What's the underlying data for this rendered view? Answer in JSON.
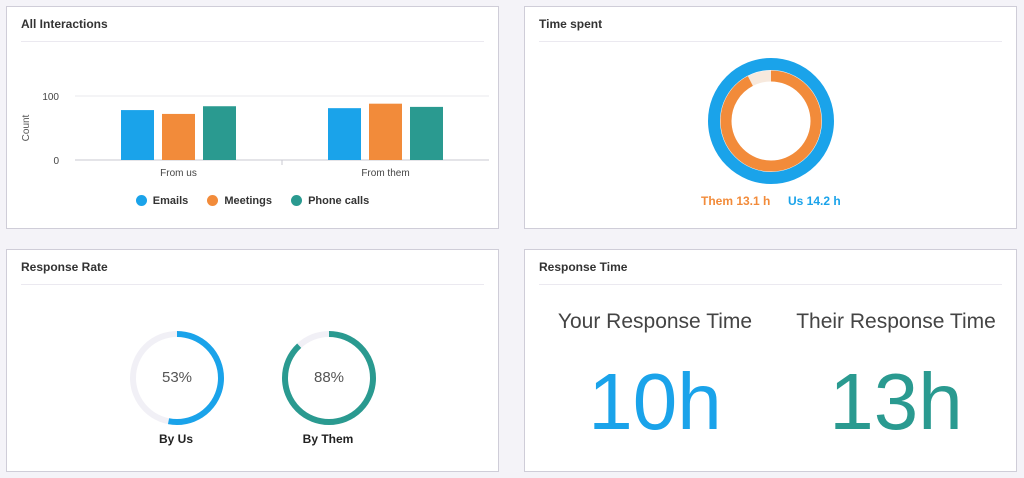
{
  "colors": {
    "emails": "#1aa3ea",
    "meetings": "#f28b3a",
    "phone_calls": "#2a9a90",
    "them": "#f28b3a",
    "us": "#1aa3ea",
    "by_us": "#1aa3ea",
    "by_them": "#2a9a90",
    "your_response": "#1aa3ea",
    "their_response": "#2a9a90"
  },
  "interactions": {
    "title": "All Interactions",
    "chart_data": {
      "type": "bar",
      "title": "",
      "ylabel": "Count",
      "xlabel": "",
      "ylim": [
        0,
        100
      ],
      "yticks": [
        "0",
        "100"
      ],
      "categories": [
        "From us",
        "From them"
      ],
      "series": [
        {
          "name": "Emails",
          "values": [
            78,
            81
          ]
        },
        {
          "name": "Meetings",
          "values": [
            72,
            88
          ]
        },
        {
          "name": "Phone calls",
          "values": [
            84,
            83
          ]
        }
      ],
      "legend": "bottom"
    },
    "legend": {
      "emails": "Emails",
      "meetings": "Meetings",
      "phone_calls": "Phone calls"
    }
  },
  "time_spent": {
    "title": "Time spent",
    "them_label": "Them 13.1 h",
    "us_label": "Us 14.2 h",
    "them_hours": 13.1,
    "us_hours": 14.2
  },
  "response_rate": {
    "title": "Response Rate",
    "by_us_pct": "53%",
    "by_us_value": 53,
    "by_us_label": "By Us",
    "by_them_pct": "88%",
    "by_them_value": 88,
    "by_them_label": "By Them"
  },
  "response_time": {
    "title": "Response Time",
    "your_heading": "Your Response Time",
    "your_value": "10h",
    "their_heading": "Their Response Time",
    "their_value": "13h"
  }
}
